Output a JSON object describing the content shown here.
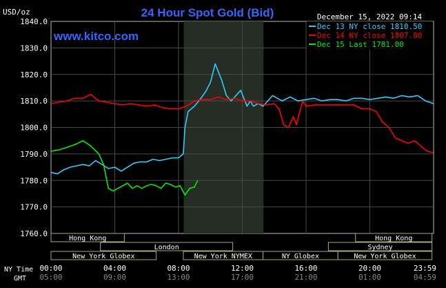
{
  "chart_data": {
    "type": "line",
    "title": "24 Hour Spot Gold (Bid)",
    "watermark": "www.kitco.com",
    "timestamp": "December 15, 2022 09:14",
    "ylabel": "USD/oz",
    "ylim": [
      1760,
      1840
    ],
    "yticks": [
      "1760.0",
      "1770.0",
      "1780.0",
      "1790.0",
      "1800.0",
      "1810.0",
      "1820.0",
      "1830.0",
      "1840.0"
    ],
    "xlim": [
      0,
      24
    ],
    "xticks": [
      {
        "x": 0,
        "ny": "00:00",
        "gmt": "05:00"
      },
      {
        "x": 4,
        "ny": "04:00",
        "gmt": "09:00"
      },
      {
        "x": 8,
        "ny": "08:00",
        "gmt": "13:00"
      },
      {
        "x": 12,
        "ny": "12:00",
        "gmt": "17:00"
      },
      {
        "x": 16,
        "ny": "16:00",
        "gmt": "21:00"
      },
      {
        "x": 20,
        "ny": "20:00",
        "gmt": "01:00"
      },
      {
        "x": 24,
        "ny": "23:59",
        "gmt": "04:59"
      }
    ],
    "xaxis_labels": {
      "ny": "NY Time",
      "gmt": "GMT"
    },
    "grid": true,
    "legend_position": "top-right",
    "shaded_hours": [
      8.33,
      13.33
    ],
    "series": [
      {
        "name": "Dec 13 NY close 1810.50",
        "color": "#33ccff",
        "x": [
          0,
          0.4,
          0.8,
          1.2,
          1.6,
          2.0,
          2.4,
          2.8,
          3.2,
          3.6,
          4.0,
          4.4,
          4.8,
          5.2,
          5.6,
          6.0,
          6.4,
          6.8,
          7.2,
          7.6,
          8.0,
          8.3,
          8.4,
          8.6,
          9.0,
          9.4,
          9.7,
          10.0,
          10.3,
          10.7,
          11.0,
          11.3,
          11.6,
          11.9,
          12.1,
          12.3,
          12.5,
          12.7,
          13.0,
          13.3,
          13.6,
          13.9,
          14.2,
          14.5,
          15.0,
          15.5,
          16.0,
          16.5,
          17.0,
          17.5,
          18.0,
          18.5,
          19.0,
          19.5,
          20.0,
          20.5,
          21.0,
          21.5,
          22.0,
          22.5,
          23.0,
          23.5,
          23.98
        ],
        "y": [
          1783,
          1782.5,
          1784,
          1785,
          1785.5,
          1786,
          1785.5,
          1787.5,
          1786,
          1784.5,
          1785,
          1783.5,
          1785,
          1786.5,
          1787,
          1787,
          1788,
          1787.5,
          1788,
          1788.5,
          1788.5,
          1790,
          1800,
          1806,
          1808,
          1811,
          1813.5,
          1817,
          1824,
          1818,
          1812,
          1810,
          1812,
          1814,
          1811,
          1808,
          1810,
          1808,
          1809,
          1808,
          1810,
          1812,
          1811,
          1810,
          1811.5,
          1810,
          1810.5,
          1811,
          1810,
          1810.5,
          1810.5,
          1810,
          1811,
          1811,
          1810.5,
          1811,
          1811.5,
          1811,
          1812,
          1811.5,
          1812,
          1810,
          1809
        ]
      },
      {
        "name": "Dec 14 NY close 1807.80",
        "color": "#ff0000",
        "x": [
          0,
          0.5,
          1.0,
          1.5,
          2.0,
          2.5,
          3.0,
          3.5,
          4.0,
          4.5,
          5.0,
          5.5,
          6.0,
          6.5,
          7.0,
          7.5,
          8.0,
          8.5,
          9.0,
          9.5,
          10.0,
          10.5,
          11.0,
          11.5,
          12.0,
          12.5,
          13.0,
          13.5,
          14.0,
          14.3,
          14.6,
          14.9,
          15.2,
          15.4,
          15.6,
          15.8,
          16.0,
          16.5,
          17.0,
          17.5,
          18.0,
          18.5,
          19.0,
          19.5,
          20.0,
          20.4,
          20.8,
          21.2,
          21.6,
          22.0,
          22.4,
          22.8,
          23.2,
          23.6,
          23.98
        ],
        "y": [
          1809,
          1809.5,
          1810,
          1811,
          1811,
          1812.5,
          1810,
          1809.5,
          1809,
          1808.5,
          1809,
          1808.5,
          1808,
          1808.5,
          1807.5,
          1807,
          1807,
          1808,
          1810,
          1810.5,
          1810.5,
          1811.5,
          1810.5,
          1811,
          1810,
          1810,
          1809,
          1808.5,
          1809,
          1807,
          1801,
          1800,
          1804,
          1801,
          1806,
          1810,
          1808,
          1808.5,
          1808.5,
          1808.5,
          1808.5,
          1808.5,
          1808.5,
          1807,
          1807,
          1806,
          1802,
          1800,
          1796,
          1795,
          1794,
          1795,
          1793,
          1791,
          1790.5
        ]
      },
      {
        "name": "Dec 15 Last 1781.00",
        "color": "#00ee00",
        "x": [
          0,
          0.5,
          1.0,
          1.5,
          2.0,
          2.5,
          3.0,
          3.3,
          3.6,
          3.9,
          4.2,
          4.5,
          4.8,
          5.1,
          5.4,
          5.7,
          6.0,
          6.3,
          6.6,
          6.9,
          7.2,
          7.5,
          7.8,
          8.1,
          8.4,
          8.7,
          9.0,
          9.2
        ],
        "y": [
          1791,
          1791.5,
          1792.5,
          1793.5,
          1795,
          1793,
          1790,
          1786,
          1777,
          1776,
          1777,
          1778,
          1779,
          1777,
          1778,
          1777,
          1778,
          1778.5,
          1778,
          1777,
          1779,
          1778.5,
          1777.5,
          1778,
          1774.5,
          1777,
          1777.5,
          1780
        ]
      }
    ],
    "sessions": [
      {
        "label": "Hong Kong",
        "start": 0,
        "end": 4.6,
        "row": 0
      },
      {
        "label": "London",
        "start": 3.1,
        "end": 11.4,
        "row": 1
      },
      {
        "label": "New York Globex",
        "start": 0,
        "end": 6.6,
        "row": 2
      },
      {
        "label": "New York NYMEX",
        "start": 8.3,
        "end": 13.3,
        "row": 2
      },
      {
        "label": "NY Globex",
        "start": 13.3,
        "end": 18.0,
        "row": 2
      },
      {
        "label": "Hong Kong",
        "start": 19.1,
        "end": 23.9,
        "row": 0
      },
      {
        "label": "Sydney",
        "start": 17.4,
        "end": 23.9,
        "row": 1
      },
      {
        "label": "New York Globex",
        "start": 18.0,
        "end": 23.9,
        "row": 2
      }
    ]
  }
}
